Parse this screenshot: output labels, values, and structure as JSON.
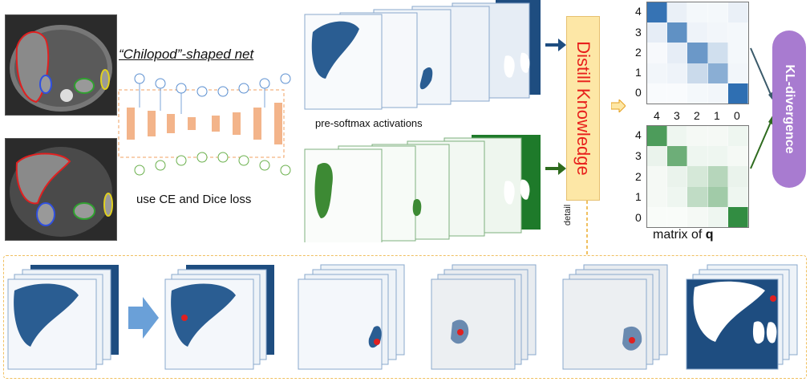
{
  "title": "“Chilopod”-shaped net",
  "loss_caption": "use CE and Dice loss",
  "activations_caption": "pre-softmax activations",
  "distill_label": "Distill Knowledge",
  "detail_label": "detail",
  "kl_label": "KL-divergence",
  "matrix_caption_prefix": "matrix of ",
  "matrix_caption_var": "q",
  "top_matrix": {
    "row_labels": [
      "4",
      "3",
      "2",
      "1",
      "0"
    ],
    "color": "#2b6cb0",
    "values": [
      [
        0.95,
        0.1,
        0.05,
        0.05,
        0.1
      ],
      [
        0.12,
        0.75,
        0.08,
        0.06,
        0.05
      ],
      [
        0.04,
        0.12,
        0.7,
        0.22,
        0.05
      ],
      [
        0.06,
        0.08,
        0.25,
        0.55,
        0.06
      ],
      [
        0.03,
        0.03,
        0.05,
        0.06,
        0.98
      ]
    ]
  },
  "bottom_matrix": {
    "col_labels": [
      "4",
      "3",
      "2",
      "1",
      "0"
    ],
    "row_labels": [
      "4",
      "3",
      "2",
      "1",
      "0"
    ],
    "color": "#2e8b3e",
    "values": [
      [
        0.85,
        0.08,
        0.05,
        0.05,
        0.08
      ],
      [
        0.1,
        0.7,
        0.08,
        0.08,
        0.05
      ],
      [
        0.05,
        0.1,
        0.2,
        0.35,
        0.1
      ],
      [
        0.05,
        0.08,
        0.3,
        0.45,
        0.08
      ],
      [
        0.03,
        0.03,
        0.05,
        0.08,
        0.98
      ]
    ]
  }
}
